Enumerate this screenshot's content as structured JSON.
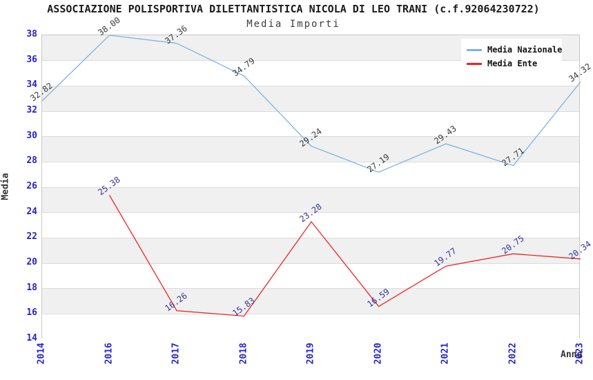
{
  "chart_data": {
    "type": "line",
    "title": "ASSOCIAZIONE POLISPORTIVA DILETTANTISTICA NICOLA DI LEO TRANI (c.f.92064230722)",
    "subtitle": "Media Importi",
    "xlabel": "Anno",
    "ylabel": "Media",
    "categories": [
      "2014",
      "2016",
      "2017",
      "2018",
      "2019",
      "2020",
      "2021",
      "2022",
      "2023"
    ],
    "series": [
      {
        "name": "Media Nazionale",
        "line_color": "#7db2e5",
        "label_color": "#3a3a3a",
        "values": [
          32.82,
          38.0,
          37.36,
          34.79,
          29.24,
          27.19,
          29.43,
          27.71,
          34.32
        ]
      },
      {
        "name": "Media Ente",
        "line_color": "#ee2222",
        "label_color": "#333399",
        "values": [
          null,
          25.38,
          16.26,
          15.83,
          23.28,
          16.59,
          19.77,
          20.75,
          20.34
        ]
      }
    ],
    "ylim": [
      14,
      38
    ],
    "ytick_step": 2,
    "grid": true,
    "band_color": "#f0f0f0",
    "tick_label_color": "#2323cc",
    "legend_position": "top-right"
  }
}
